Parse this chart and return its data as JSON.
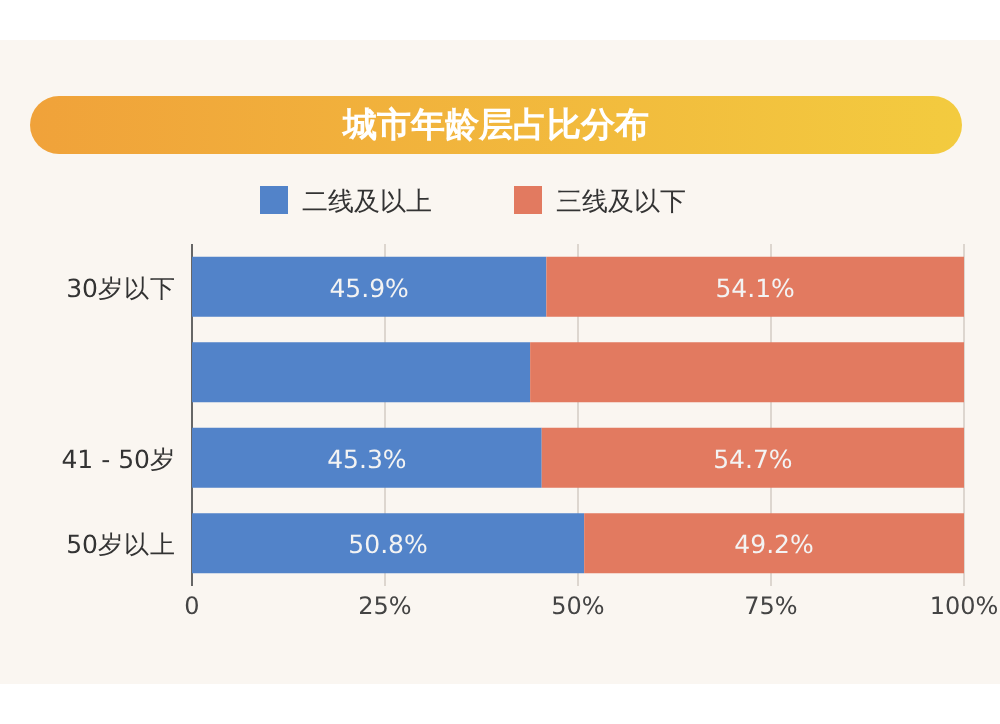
{
  "chart_data": {
    "type": "bar",
    "orientation": "horizontal",
    "stacked": true,
    "title": "城市年龄层占比分布",
    "categories": [
      "30岁以下",
      null,
      "41 - 50岁",
      "50岁以上"
    ],
    "series": [
      {
        "name": "二线及以上",
        "color": "#5283c9",
        "values": [
          45.9,
          43.8,
          45.3,
          50.8
        ],
        "value_labels": [
          "45.9%",
          null,
          "45.3%",
          "50.8%"
        ]
      },
      {
        "name": "三线及以下",
        "color": "#e27a60",
        "values": [
          54.1,
          56.2,
          54.7,
          49.2
        ],
        "value_labels": [
          "54.1%",
          null,
          "54.7%",
          "49.2%"
        ]
      }
    ],
    "xlim": [
      0,
      100
    ],
    "xticks": [
      0,
      {
        "value": 25,
        "label": "25%"
      },
      {
        "value": 50,
        "label": "50%"
      },
      {
        "value": 75,
        "label": "75%"
      },
      {
        "value": 100,
        "label": "100%"
      }
    ],
    "grid": "x",
    "legend": "top"
  }
}
